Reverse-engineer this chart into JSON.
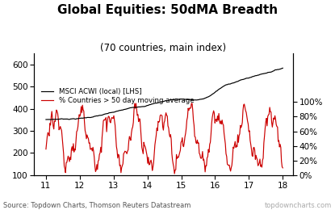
{
  "title": "Global Equities: 50dMA Breadth",
  "subtitle": "(70 countries, main index)",
  "legend_black": "MSCI ACWI (local) [LHS]",
  "legend_red": "% Countries > 50 day moving average",
  "source_left": "Source: Topdown Charts, Thomson Reuters Datastream",
  "source_right": "topdowncharts.com",
  "x_ticks": [
    11,
    12,
    13,
    14,
    15,
    16,
    17,
    18
  ],
  "left_ylim": [
    100,
    650
  ],
  "left_yticks": [
    100,
    200,
    300,
    400,
    500,
    600
  ],
  "right_yticklabels": [
    "0%",
    "20%",
    "40%",
    "60%",
    "80%",
    "100%"
  ],
  "background_color": "#ffffff",
  "line_black_color": "#000000",
  "line_red_color": "#cc0000",
  "title_fontsize": 11,
  "subtitle_fontsize": 8.5,
  "tick_fontsize": 7.5,
  "source_fontsize": 6
}
